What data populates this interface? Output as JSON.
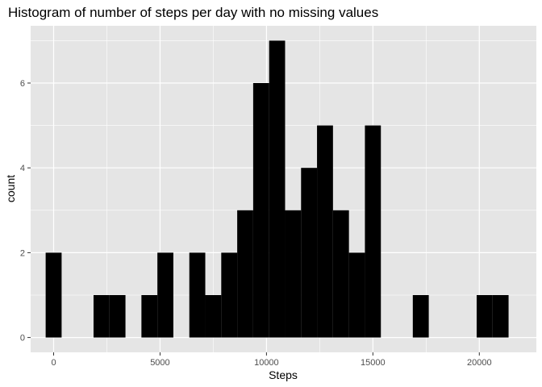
{
  "chart_data": {
    "type": "bar",
    "title": "Histogram of number of steps per day with no missing values",
    "xlabel": "Steps",
    "ylabel": "count",
    "xlim": [
      -1080,
      22680
    ],
    "ylim": [
      -0.35,
      7.35
    ],
    "x_ticks": [
      0,
      5000,
      10000,
      15000,
      20000
    ],
    "x_tick_labels": [
      "0",
      "5000",
      "10000",
      "15000",
      "20000"
    ],
    "y_ticks": [
      0,
      2,
      4,
      6
    ],
    "y_tick_labels": [
      "0",
      "2",
      "4",
      "6"
    ],
    "bin_width": 750,
    "bin_centers": [
      0,
      750,
      1500,
      2250,
      3000,
      3750,
      4500,
      5250,
      6000,
      6750,
      7500,
      8250,
      9000,
      9750,
      10500,
      11250,
      12000,
      12750,
      13500,
      14250,
      15000,
      15750,
      16500,
      17250,
      18000,
      18750,
      19500,
      20250,
      21000
    ],
    "counts": [
      2,
      0,
      0,
      1,
      1,
      0,
      1,
      2,
      0,
      2,
      1,
      2,
      3,
      6,
      7,
      3,
      4,
      5,
      3,
      2,
      5,
      0,
      0,
      1,
      0,
      0,
      0,
      1,
      1
    ],
    "grid": true,
    "panel_background": "#e5e5e5",
    "grid_color": "#ffffff",
    "bar_color": "#000000"
  }
}
